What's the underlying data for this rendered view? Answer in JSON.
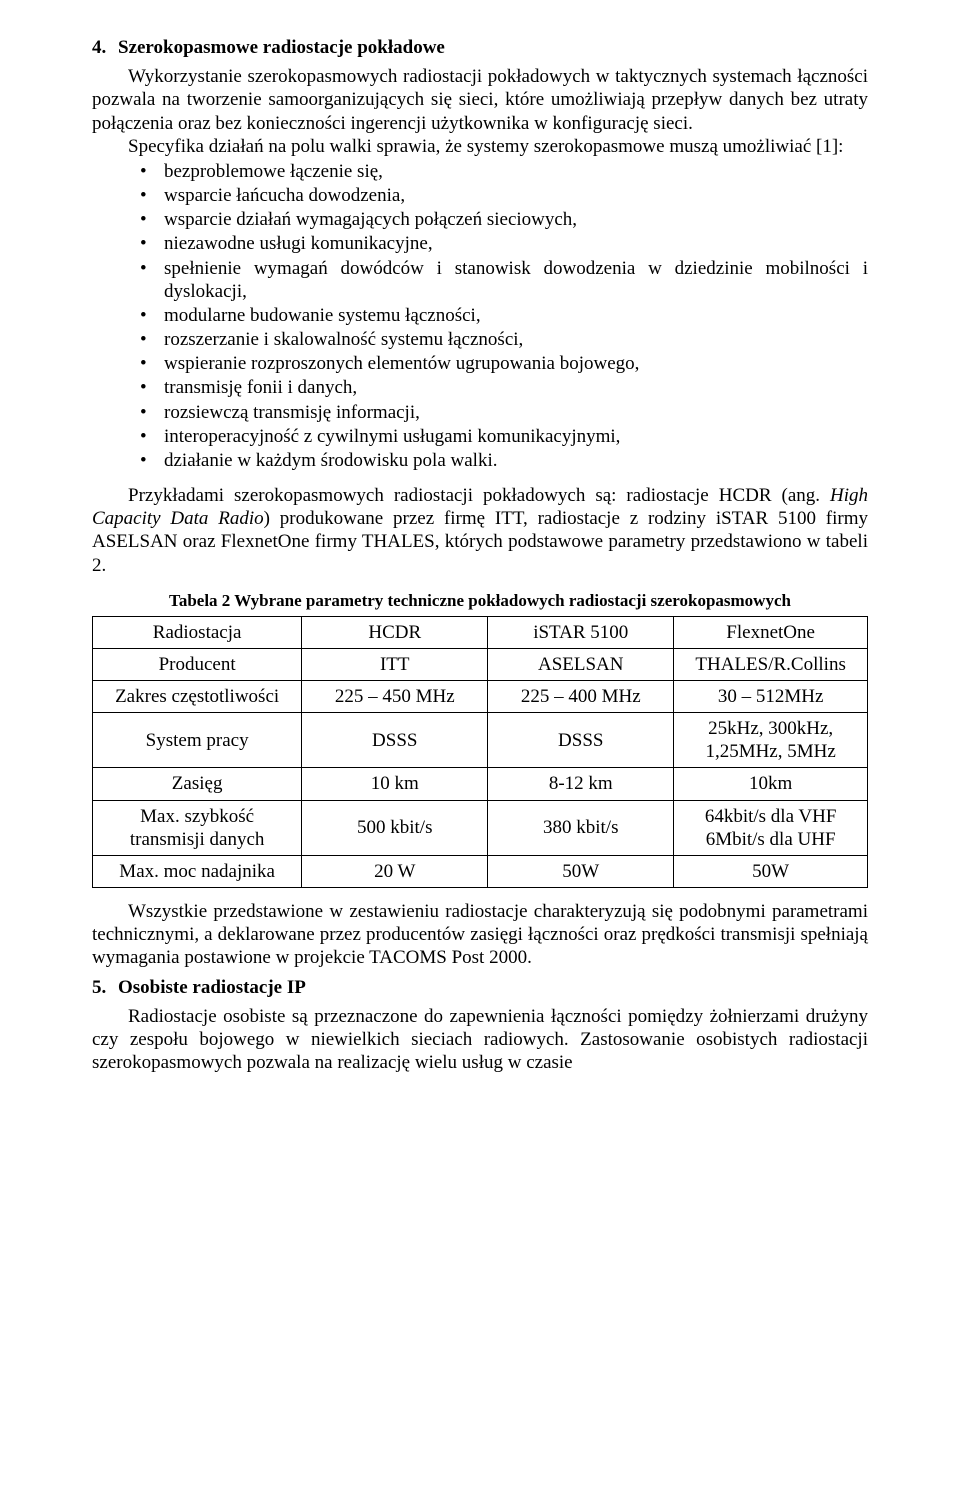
{
  "section4": {
    "num": "4.",
    "title": "Szerokopasmowe radiostacje pokładowe",
    "para1": "Wykorzystanie szerokopasmowych radiostacji pokładowych w taktycznych systemach łączności pozwala na tworzenie samoorganizujących się sieci, które umożliwiają przepływ danych bez utraty połączenia oraz bez konieczności ingerencji użytkownika w konfigurację sieci.",
    "para2": "Specyfika działań na polu walki sprawia, że systemy szerokopasmowe muszą umożliwiać [1]:",
    "bullets": [
      "bezproblemowe łączenie się,",
      "wsparcie łańcucha dowodzenia,",
      "wsparcie działań wymagających połączeń sieciowych,",
      "niezawodne usługi komunikacyjne,",
      "spełnienie wymagań dowódców i stanowisk dowodzenia w dziedzinie mobilności i dyslokacji,",
      "modularne budowanie systemu łączności,",
      "rozszerzanie i skalowalność systemu łączności,",
      "wspieranie rozproszonych elementów ugrupowania bojowego,",
      "transmisję fonii i danych,",
      "rozsiewczą transmisję informacji,",
      "interoperacyjność z cywilnymi usługami komunikacyjnymi,",
      "działanie w każdym środowisku pola walki."
    ],
    "para3": "Przykładami szerokopasmowych radiostacji pokładowych są: radiostacje HCDR (ang. High Capacity Data Radio) produkowane przez firmę ITT, radiostacje z rodziny iSTAR 5100 firmy ASELSAN oraz FlexnetOne firmy THALES, których podstawowe parametry przedstawiono w tabeli 2.",
    "para3_italic": "High Capacity Data Radio"
  },
  "table2": {
    "caption": "Tabela 2 Wybrane parametry techniczne pokładowych radiostacji szerokopasmowych",
    "header": [
      "Radiostacja",
      "HCDR",
      "iSTAR 5100",
      "FlexnetOne"
    ],
    "rows": [
      [
        "Producent",
        "ITT",
        "ASELSAN",
        "THALES/R.Collins"
      ],
      [
        "Zakres częstotliwości",
        "225 – 450 MHz",
        "225 – 400 MHz",
        "30 – 512MHz"
      ],
      [
        "System pracy",
        "DSSS",
        "DSSS",
        "25kHz, 300kHz, 1,25MHz, 5MHz"
      ],
      [
        "Zasięg",
        "10 km",
        "8-12 km",
        "10km"
      ],
      [
        "Max. szybkość transmisji danych",
        "500 kbit/s",
        "380 kbit/s",
        "64kbit/s dla VHF 6Mbit/s dla UHF"
      ],
      [
        "Max. moc nadajnika",
        "20 W",
        "50W",
        "50W"
      ]
    ],
    "col_widths": [
      "27%",
      "24%",
      "24%",
      "25%"
    ],
    "border_color": "#000000"
  },
  "after_table_para": "Wszystkie przedstawione w zestawieniu radiostacje charakteryzują się podobnymi parametrami technicznymi, a deklarowane przez producentów zasięgi łączności oraz prędkości transmisji spełniają wymagania postawione w projekcie TACOMS Post 2000.",
  "section5": {
    "num": "5.",
    "title": "Osobiste radiostacje IP",
    "para1": "Radiostacje osobiste są przeznaczone do zapewnienia łączności pomiędzy żołnierzami drużyny czy zespołu bojowego w niewielkich sieciach radiowych. Zastosowanie osobistych radiostacji szerokopasmowych pozwala na realizację wielu usług w czasie"
  }
}
